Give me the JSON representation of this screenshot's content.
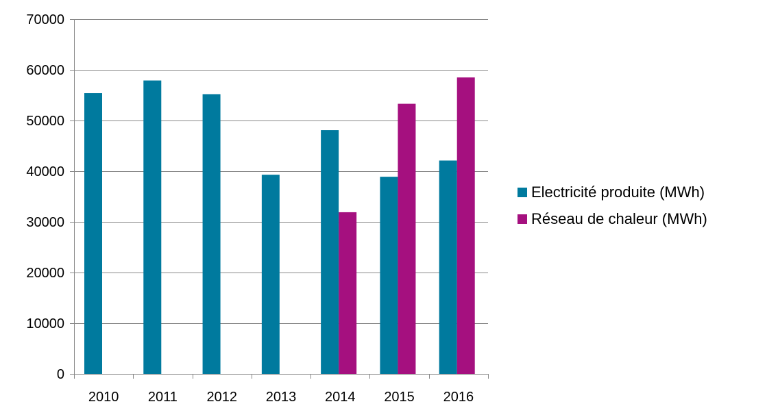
{
  "chart_data": {
    "type": "bar",
    "categories": [
      "2010",
      "2011",
      "2012",
      "2013",
      "2014",
      "2015",
      "2016"
    ],
    "series": [
      {
        "name": "Electricité produite (MWh)",
        "color": "#007A9E",
        "values": [
          55400,
          57900,
          55200,
          39300,
          48100,
          38900,
          42100
        ]
      },
      {
        "name": "Réseau de chaleur (MWh)",
        "color": "#A5107F",
        "values": [
          0,
          0,
          0,
          0,
          31900,
          53300,
          58500
        ]
      }
    ],
    "ylim": [
      0,
      70000
    ],
    "yticks": [
      0,
      10000,
      20000,
      30000,
      40000,
      50000,
      60000,
      70000
    ],
    "grid": true,
    "legend_position": "right"
  }
}
